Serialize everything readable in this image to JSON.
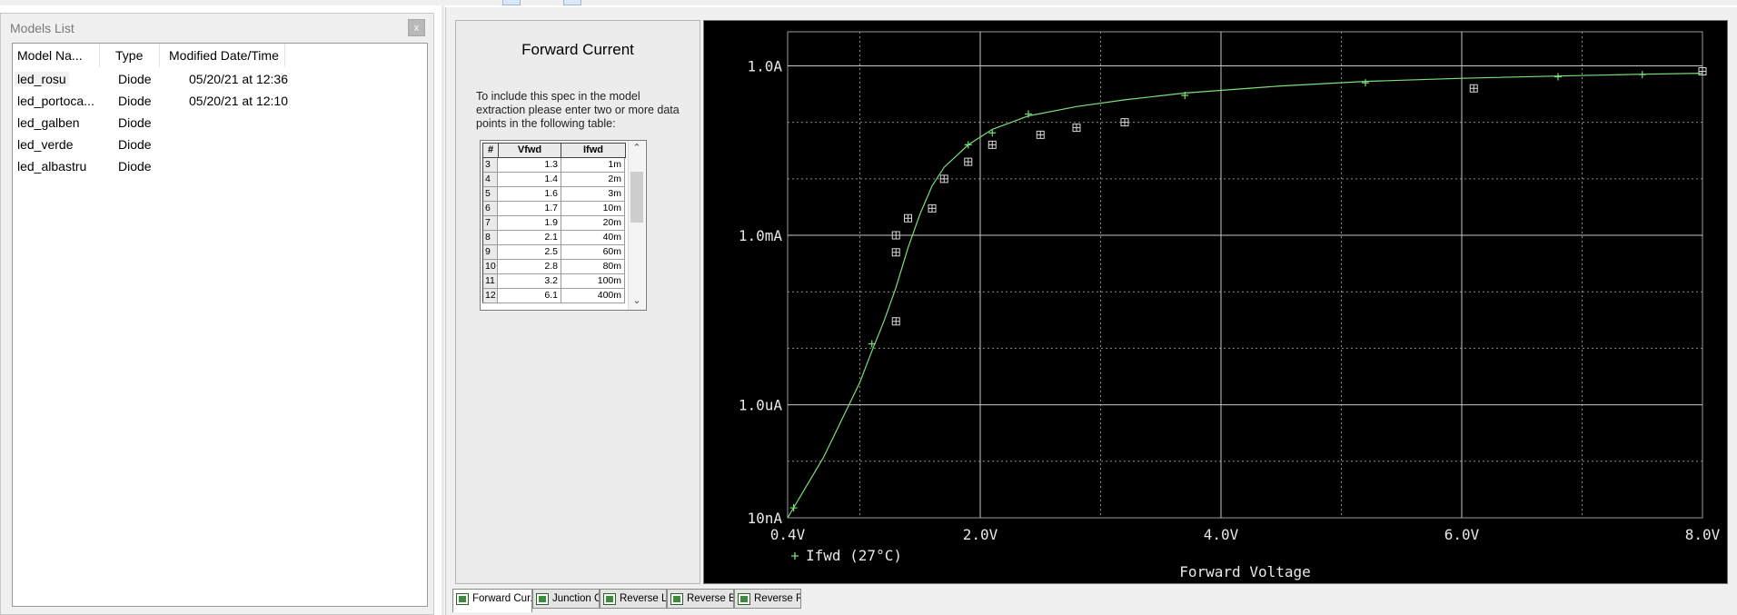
{
  "models_panel": {
    "title": "Models List",
    "close_label": "x",
    "columns": [
      "Model Na...",
      "Type",
      "Modified Date/Time"
    ],
    "rows": [
      {
        "name": "led_rosu",
        "type": "Diode",
        "modified": "05/20/21 at 12:36"
      },
      {
        "name": "led_portoca...",
        "type": "Diode",
        "modified": "05/20/21 at 12:10"
      },
      {
        "name": "led_galben",
        "type": "Diode",
        "modified": ""
      },
      {
        "name": "led_verde",
        "type": "Diode",
        "modified": ""
      },
      {
        "name": "led_albastru",
        "type": "Diode",
        "modified": ""
      }
    ]
  },
  "spec": {
    "title": "Forward Current",
    "instructions": "To include this spec in the model extraction please enter two or more data points in the following table:",
    "table": {
      "headers": [
        "#",
        "Vfwd",
        "Ifwd"
      ],
      "rows": [
        [
          "3",
          "1.3",
          "1m"
        ],
        [
          "4",
          "1.4",
          "2m"
        ],
        [
          "5",
          "1.6",
          "3m"
        ],
        [
          "6",
          "1.7",
          "10m"
        ],
        [
          "7",
          "1.9",
          "20m"
        ],
        [
          "8",
          "2.1",
          "40m"
        ],
        [
          "9",
          "2.5",
          "60m"
        ],
        [
          "10",
          "2.8",
          "80m"
        ],
        [
          "11",
          "3.2",
          "100m"
        ],
        [
          "12",
          "6.1",
          "400m"
        ]
      ]
    }
  },
  "chart_data": {
    "type": "scatter",
    "xlabel": "Forward Voltage",
    "ylabel": "",
    "x_scale": "linear",
    "y_scale": "log",
    "xlim": [
      0.4,
      8.0
    ],
    "ylim": [
      1e-08,
      4
    ],
    "x_ticks": [
      {
        "value": 0.4,
        "label": "0.4V"
      },
      {
        "value": 2.0,
        "label": "2.0V"
      },
      {
        "value": 4.0,
        "label": "4.0V"
      },
      {
        "value": 6.0,
        "label": "6.0V"
      },
      {
        "value": 8.0,
        "label": "8.0V"
      }
    ],
    "y_ticks": [
      {
        "value": 1e-08,
        "label": "10nA"
      },
      {
        "value": 1e-06,
        "label": "1.0uA"
      },
      {
        "value": 0.001,
        "label": "1.0mA"
      },
      {
        "value": 1,
        "label": "1.0A"
      }
    ],
    "grid": true,
    "legend": "bottom-left",
    "background_color": "#000000",
    "curve_color": "#7be07b",
    "marker_color": "#d8d8d8",
    "series": [
      {
        "name": "Ifwd (27°C)",
        "kind": "model-curve",
        "x": [
          0.4,
          0.7,
          1.0,
          1.1,
          1.2,
          1.3,
          1.4,
          1.5,
          1.6,
          1.7,
          1.9,
          2.1,
          2.4,
          2.8,
          3.2,
          3.7,
          4.5,
          5.2,
          6.0,
          6.8,
          7.5,
          8.0
        ],
        "y": [
          1e-08,
          1.2e-07,
          2.5e-06,
          9e-06,
          3e-05,
          0.00012,
          0.0006,
          0.0024,
          0.0075,
          0.016,
          0.04,
          0.075,
          0.13,
          0.19,
          0.25,
          0.33,
          0.44,
          0.53,
          0.6,
          0.66,
          0.71,
          0.74
        ]
      },
      {
        "name": "",
        "kind": "simulated-points",
        "x": [
          0.45,
          1.1,
          1.9,
          2.1,
          2.4,
          3.7,
          5.2,
          6.8,
          7.5
        ],
        "y": [
          1.5e-08,
          1.2e-05,
          0.04,
          0.065,
          0.14,
          0.3,
          0.5,
          0.64,
          0.7
        ]
      },
      {
        "name": "",
        "kind": "measured-points",
        "x": [
          1.3,
          1.4,
          1.6,
          1.7,
          1.9,
          2.1,
          2.5,
          2.8,
          3.2,
          6.1,
          1.3,
          1.3,
          8.0
        ],
        "y": [
          0.001,
          0.002,
          0.003,
          0.01,
          0.02,
          0.04,
          0.06,
          0.08,
          0.1,
          0.4,
          0.0005,
          3e-05,
          0.8
        ]
      }
    ]
  },
  "tabs": [
    {
      "label": "Forward Cur...",
      "active": true
    },
    {
      "label": "Junction Ca...",
      "active": false
    },
    {
      "label": "Reverse Le...",
      "active": false
    },
    {
      "label": "Reverse Br...",
      "active": false
    },
    {
      "label": "Reverse Re...",
      "active": false
    }
  ]
}
